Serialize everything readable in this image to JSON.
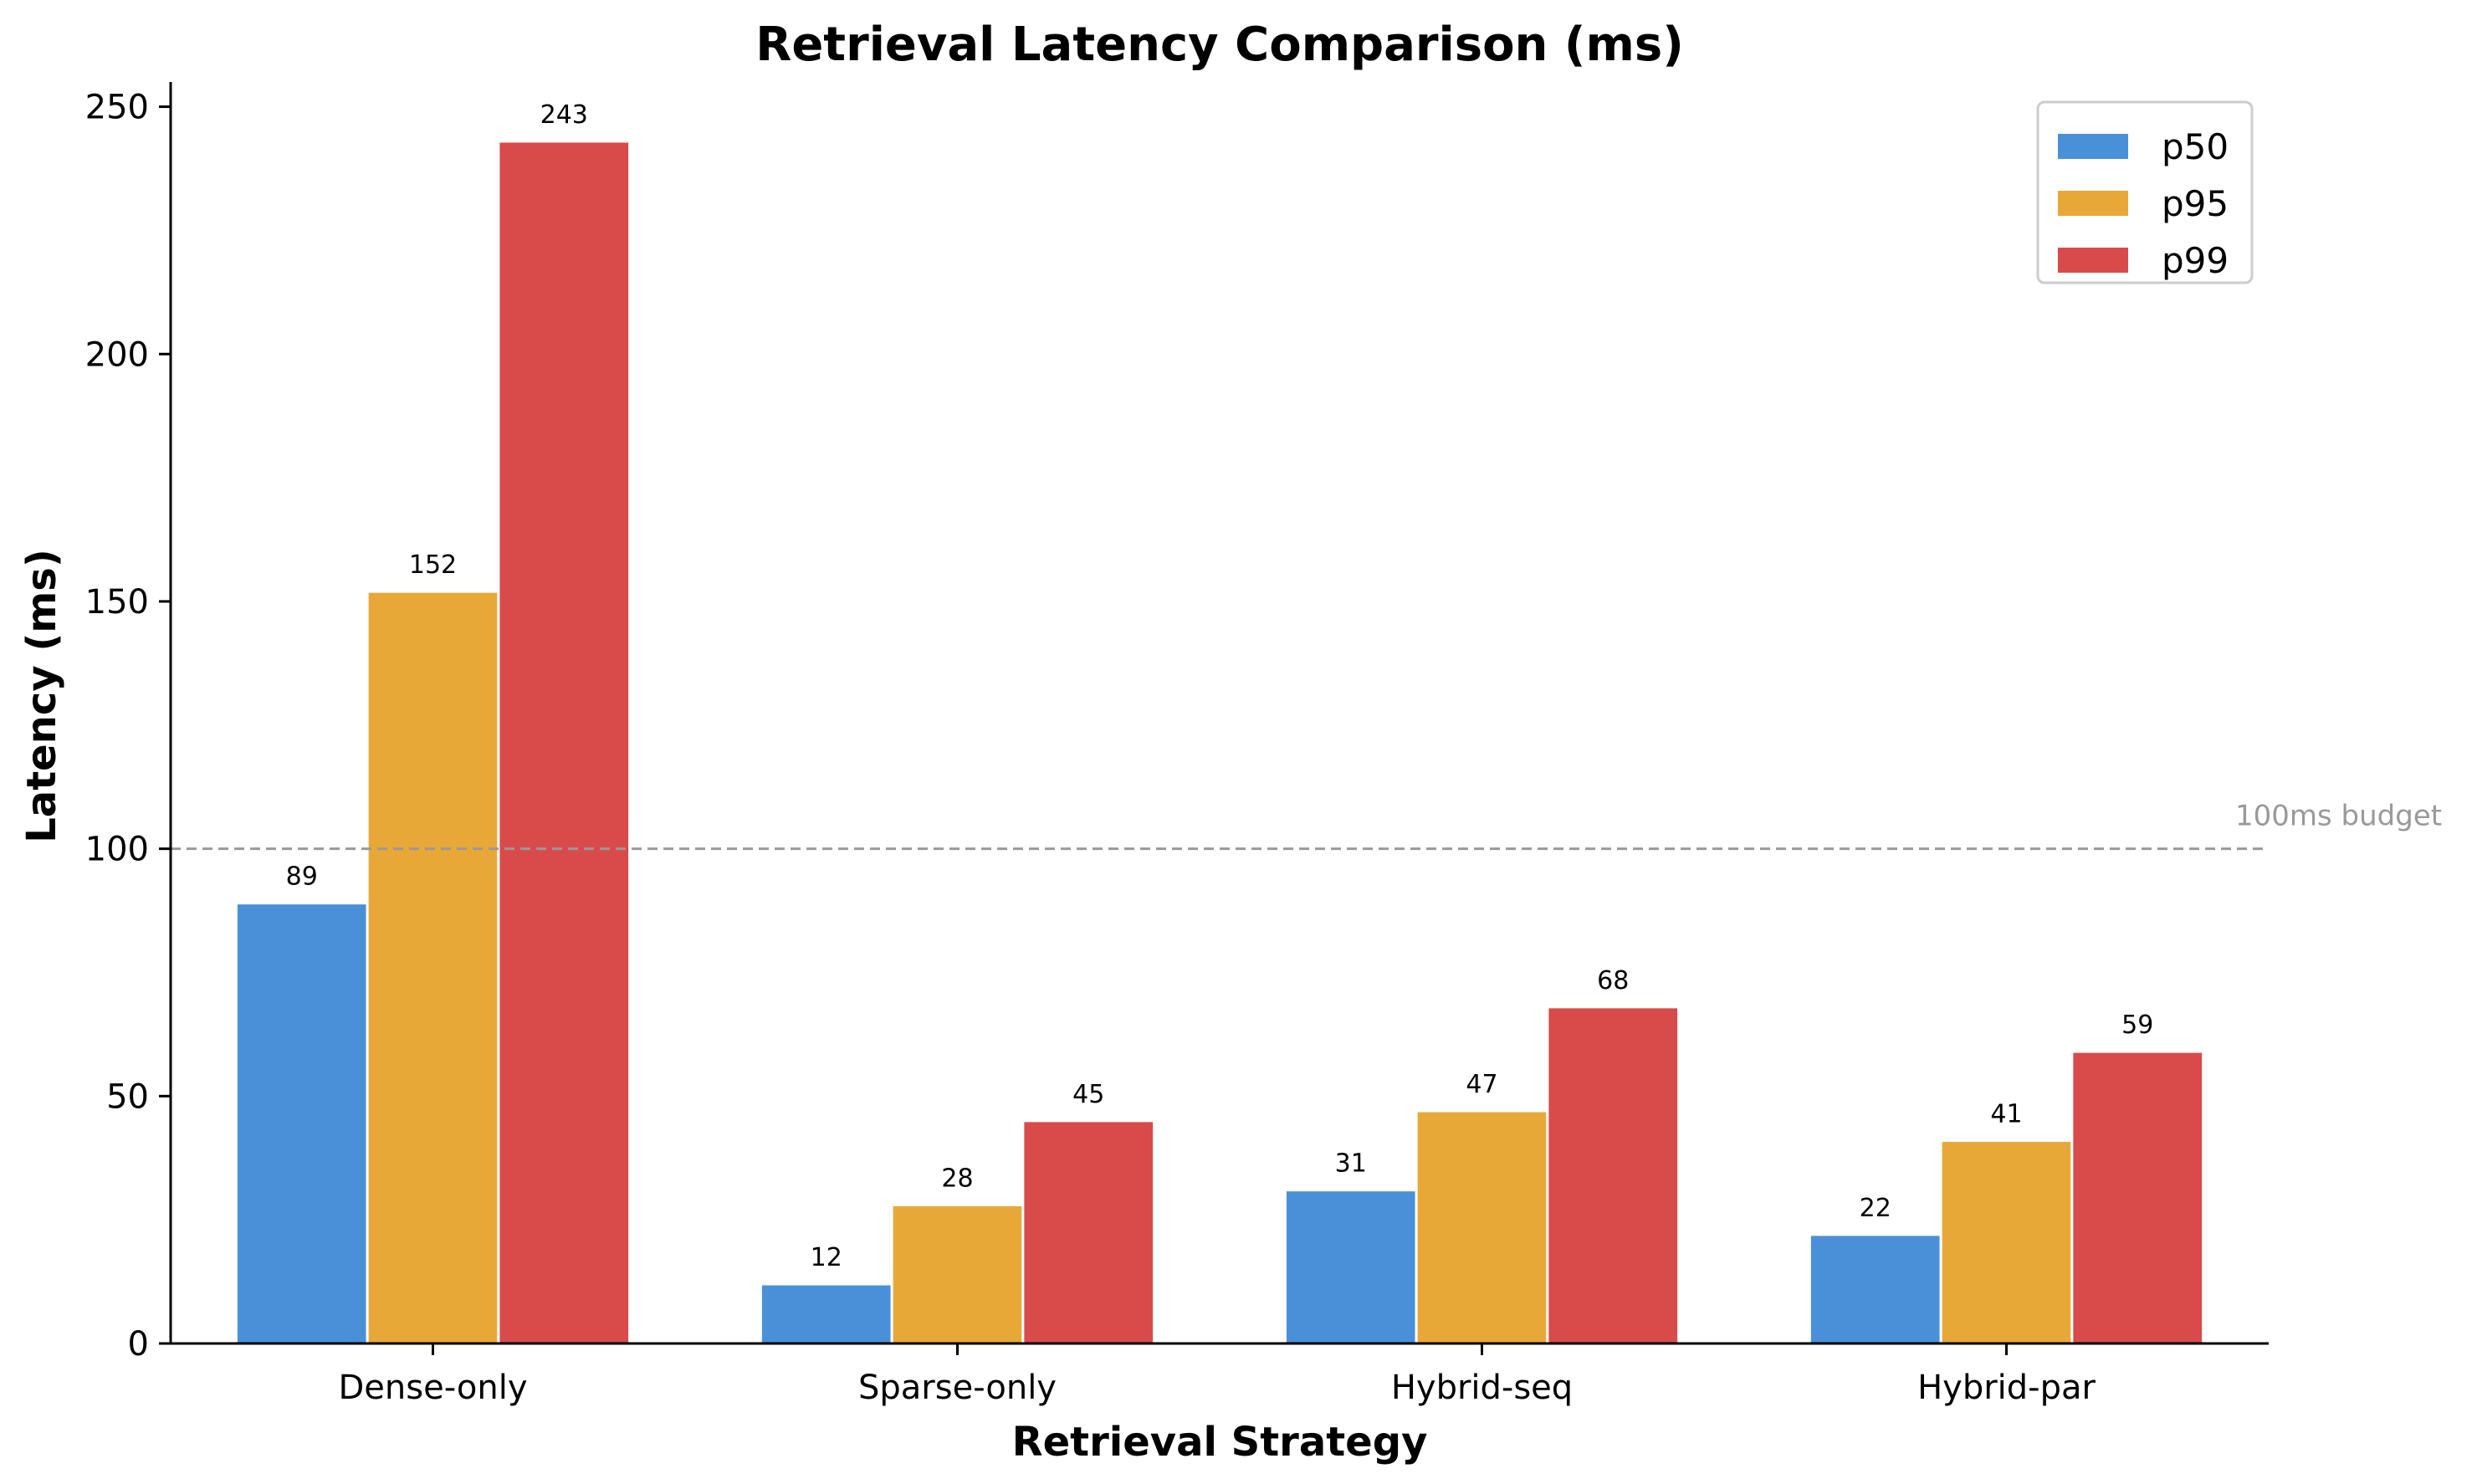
{
  "chart_data": {
    "type": "bar",
    "title": "Retrieval Latency Comparison (ms)",
    "xlabel": "Retrieval Strategy",
    "ylabel": "Latency (ms)",
    "categories": [
      "Dense-only",
      "Sparse-only",
      "Hybrid-seq",
      "Hybrid-par"
    ],
    "series": [
      {
        "name": "p50",
        "color": "#4a90d9",
        "values": [
          89,
          12,
          31,
          22
        ]
      },
      {
        "name": "p95",
        "color": "#e8a838",
        "values": [
          152,
          28,
          47,
          41
        ]
      },
      {
        "name": "p99",
        "color": "#d94a4a",
        "values": [
          243,
          45,
          68,
          59
        ]
      }
    ],
    "ylim": [
      0,
      255
    ],
    "yticks": [
      0,
      50,
      100,
      150,
      200,
      250
    ],
    "reference_line": {
      "value": 100,
      "label": "100ms budget",
      "color": "#999999",
      "style": "dashed"
    },
    "legend_position": "top-right",
    "grid": false
  }
}
